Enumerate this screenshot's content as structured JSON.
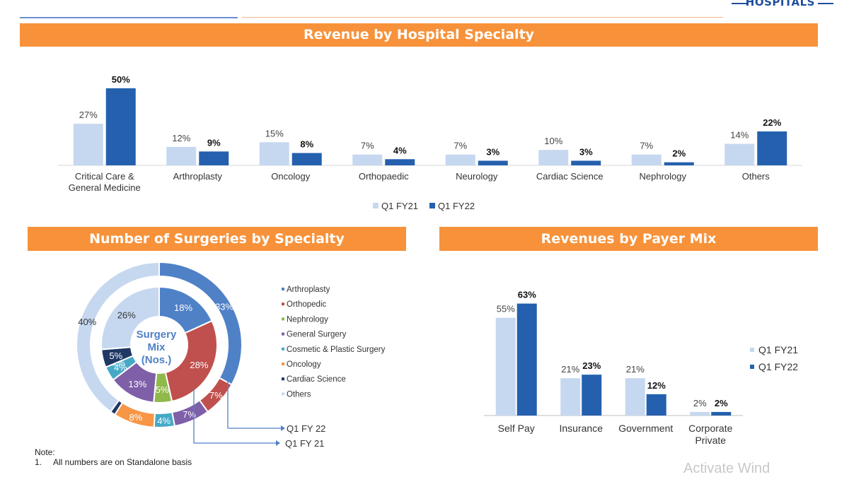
{
  "brand": {
    "text": "HOSPITALS",
    "color": "#1f4e9c"
  },
  "colors": {
    "banner": "#f7923a",
    "fy21": "#c6d8f0",
    "fy22": "#2460ae"
  },
  "banners": {
    "revenue_specialty": "Revenue by Hospital Specialty",
    "surgeries": "Number of Surgeries by Specialty",
    "payer_mix": "Revenues by Payer Mix"
  },
  "note": {
    "title": "Note:",
    "number": "1.",
    "text": "All numbers are on Standalone basis"
  },
  "watermark": "Activate Wind",
  "chart_data": [
    {
      "type": "bar",
      "title": "Revenue by Hospital Specialty",
      "categories": [
        [
          "Critical Care &",
          "General Medicine"
        ],
        [
          "Arthroplasty"
        ],
        [
          "Oncology"
        ],
        [
          "Orthopaedic"
        ],
        [
          "Neurology"
        ],
        [
          "Cardiac Science"
        ],
        [
          "Nephrology"
        ],
        [
          "Others"
        ]
      ],
      "series": [
        {
          "name": "Q1 FY21",
          "values": [
            27,
            12,
            15,
            7,
            7,
            10,
            7,
            14
          ],
          "labels": [
            "27%",
            "12%",
            "15%",
            "7%",
            "7%",
            "10%",
            "7%",
            "14%"
          ],
          "color": "#c6d8f0"
        },
        {
          "name": "Q1 FY22",
          "values": [
            50,
            9,
            8,
            4,
            3,
            3,
            2,
            22
          ],
          "labels": [
            "50%",
            "9%",
            "8%",
            "4%",
            "3%",
            "3%",
            "2%",
            "22%"
          ],
          "color": "#2460ae"
        }
      ],
      "ylim": [
        0,
        55
      ],
      "legend": "bottom"
    },
    {
      "type": "pie",
      "title": "Number of Surgeries by Specialty",
      "center_label": [
        "Surgery",
        "Mix",
        "(Nos.)"
      ],
      "categories": [
        "Arthroplasty",
        "Orthopedic",
        "Nephrology",
        "General Surgery",
        "Cosmetic & Plastic Surgery",
        "Oncology",
        "Cardiac Science",
        "Others"
      ],
      "colors": [
        "#4f81c7",
        "#c0504d",
        "#8fb94b",
        "#7e5fa8",
        "#45a9c6",
        "#f79646",
        "#1f3864",
        "#c6d8f0"
      ],
      "series": [
        {
          "name": "Q1 FY 22",
          "ring": "outer",
          "values": [
            33,
            7,
            0,
            7,
            4,
            8,
            1,
            40
          ],
          "labels": [
            "33%",
            "7%",
            "",
            "7%",
            "4%",
            "8%",
            "",
            "40%"
          ]
        },
        {
          "name": "Q1 FY 21",
          "ring": "inner",
          "values": [
            18,
            28,
            5,
            13,
            4,
            0,
            5,
            26
          ],
          "labels": [
            "18%",
            "28%",
            "5%",
            "13%",
            "4%",
            "0%",
            "5%",
            "26%"
          ]
        }
      ],
      "legend": "right"
    },
    {
      "type": "bar",
      "title": "Revenues by Payer Mix",
      "categories": [
        [
          "Self Pay"
        ],
        [
          "Insurance"
        ],
        [
          "Government"
        ],
        [
          "Corporate",
          "Private"
        ]
      ],
      "series": [
        {
          "name": "Q1 FY21",
          "values": [
            55,
            21,
            21,
            2
          ],
          "labels": [
            "55%",
            "21%",
            "21%",
            "2%"
          ],
          "color": "#c6d8f0"
        },
        {
          "name": "Q1 FY22",
          "values": [
            63,
            23,
            12,
            2
          ],
          "labels": [
            "63%",
            "23%",
            "12%",
            "2%"
          ],
          "color": "#2460ae"
        }
      ],
      "ylim": [
        0,
        70
      ],
      "legend": "right"
    }
  ]
}
